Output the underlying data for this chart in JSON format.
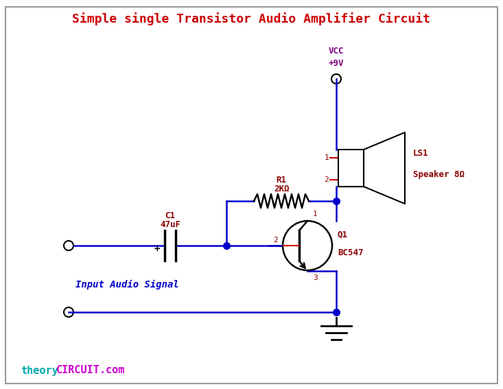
{
  "title": "Simple single Transistor Audio Amplifier Circuit",
  "title_color": "#cc0000",
  "title_fontsize": 13,
  "bg_color": "#ffffff",
  "border_color": "#999999",
  "wire_color": "#0000cc",
  "component_color": "#000000",
  "label_color": "#8b0000",
  "vcc_label": "VCC",
  "vcc_value": "+9V",
  "vcc_color": "#800080",
  "c1_label": "C1",
  "c1_value": "47uF",
  "r1_label": "R1",
  "r1_value": "2KΩ",
  "q1_label": "Q1",
  "q1_value": "BC547",
  "ls1_label": "LS1",
  "ls1_value": "Speaker 8Ω",
  "input_label": "Input Audio Signal",
  "input_color": "#0000cc",
  "brand_theory": "theory",
  "brand_circuit": "CIRCUIT.com",
  "brand_color_theory": "#00aaaa",
  "brand_color_circuit": "#cc00cc",
  "figsize": [
    7.33,
    5.67
  ],
  "dpi": 100
}
